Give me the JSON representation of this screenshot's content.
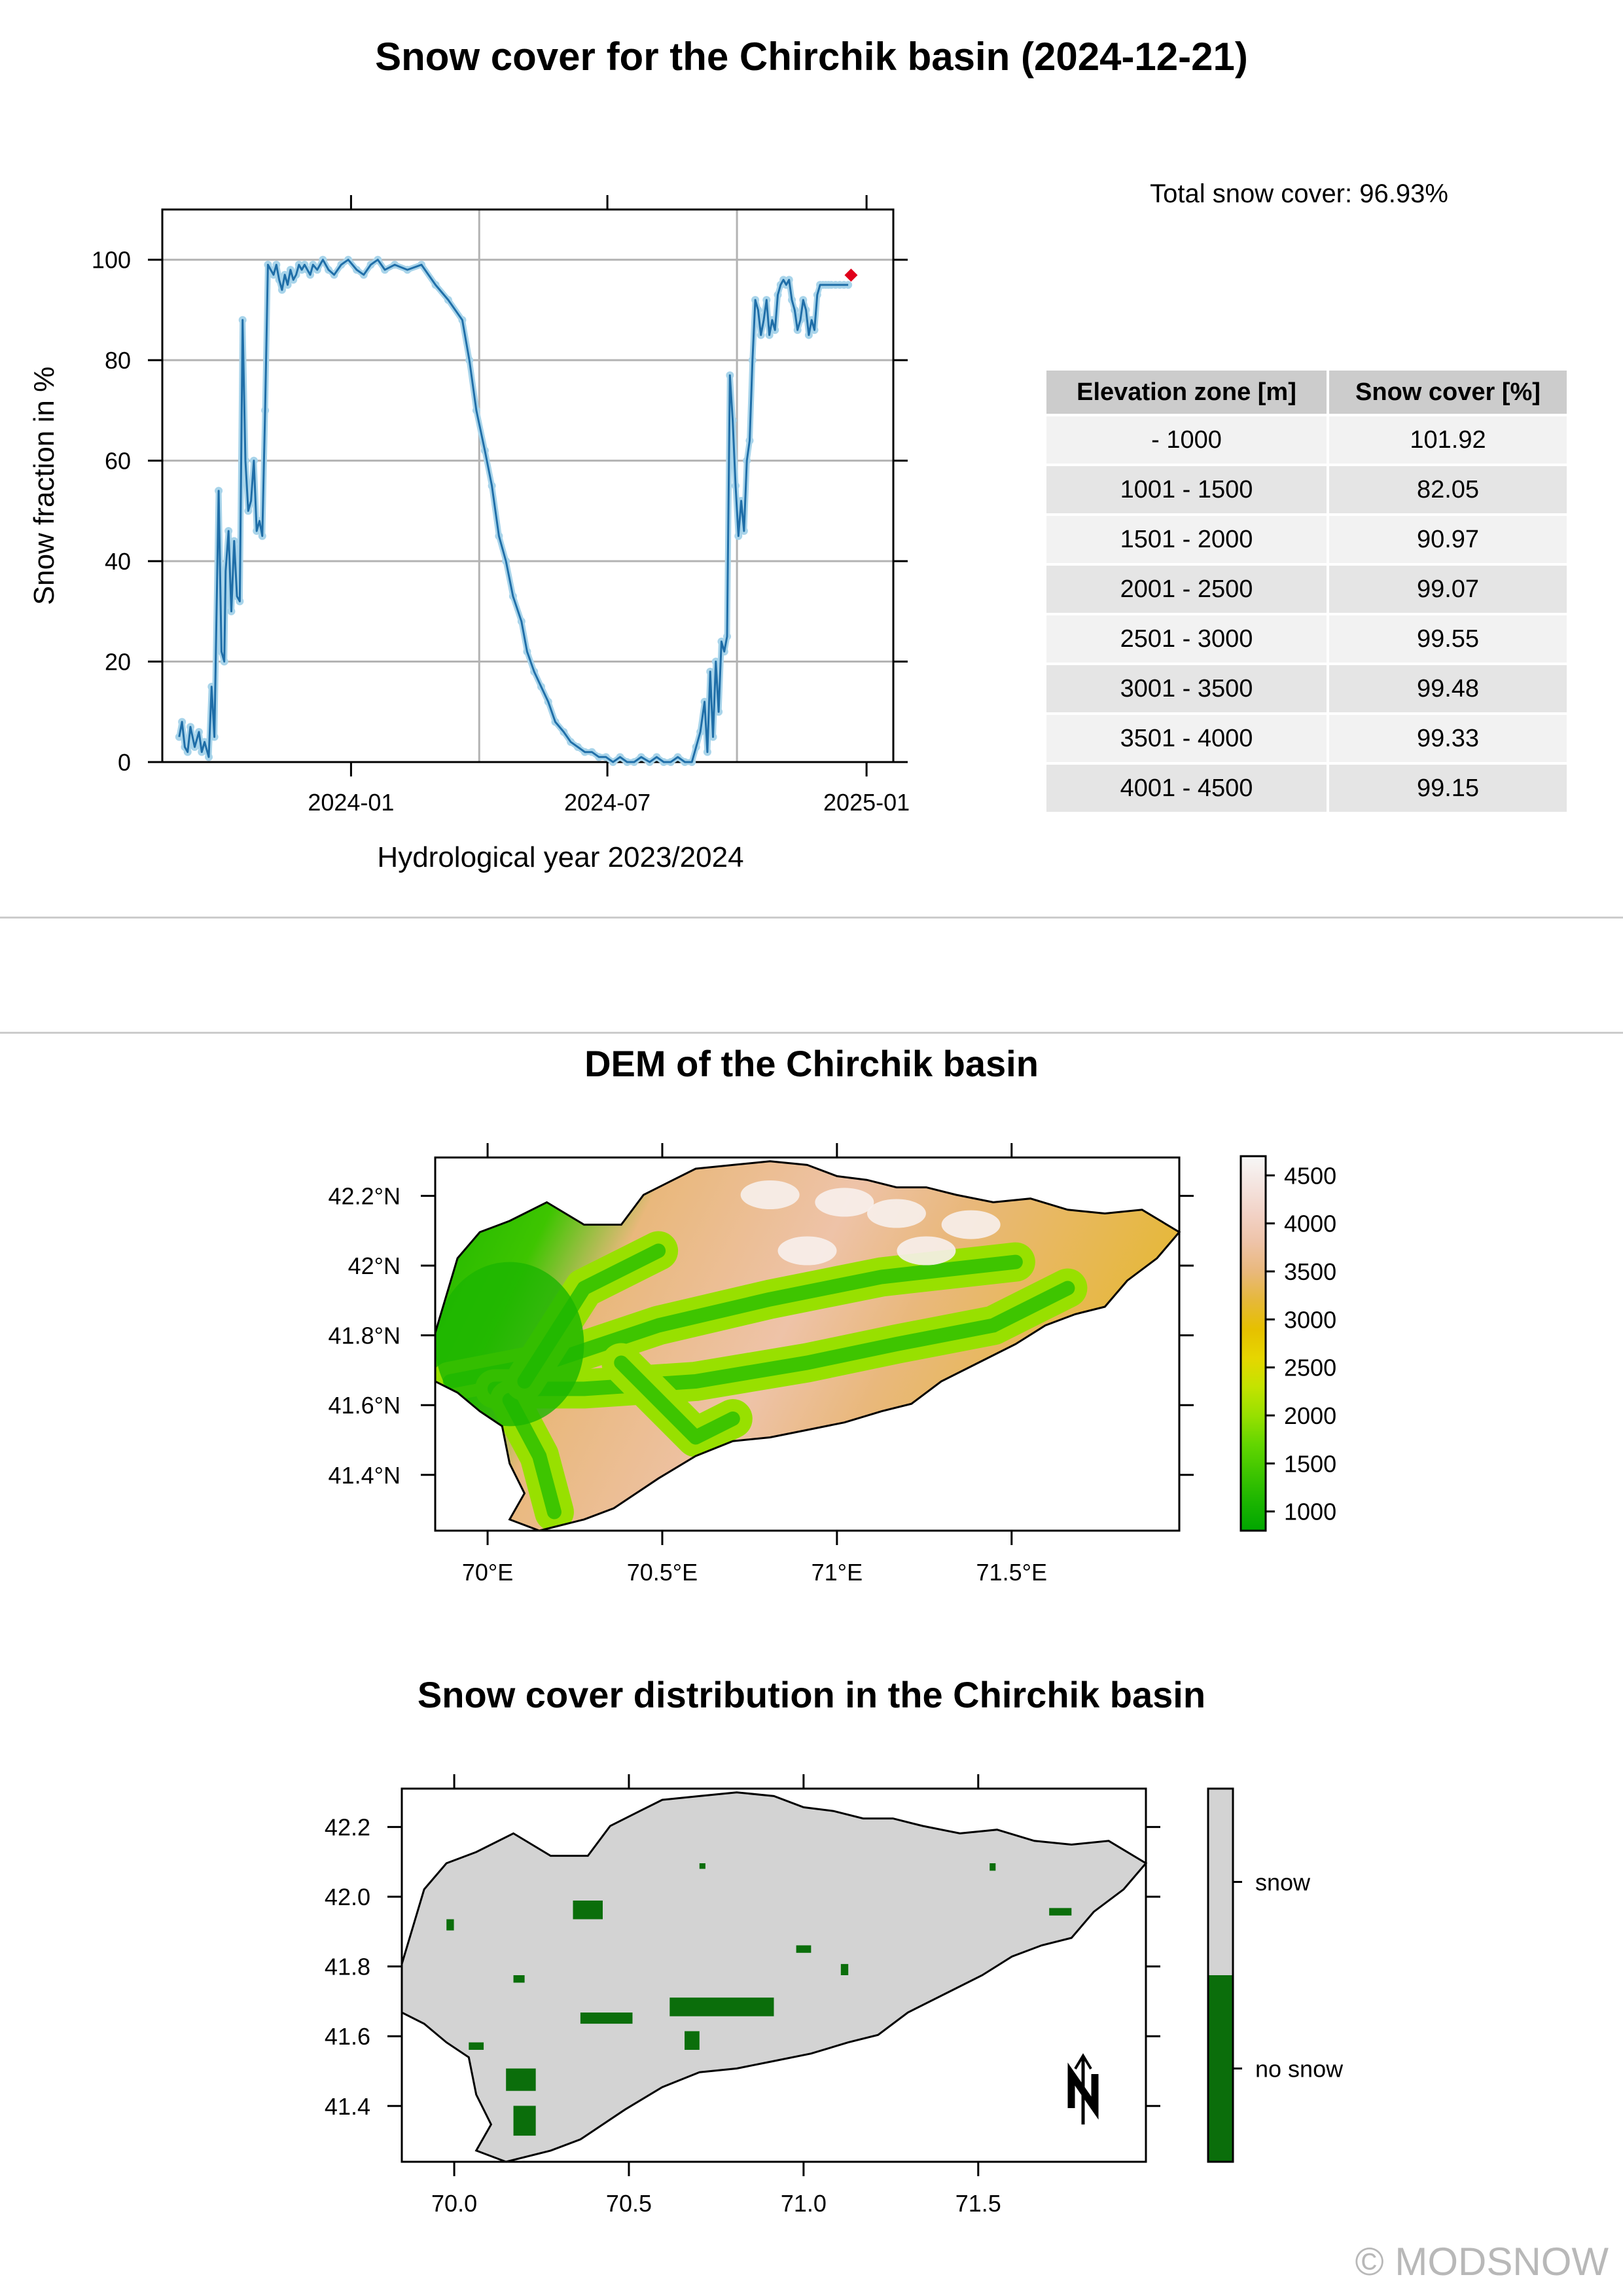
{
  "page": {
    "title": "Snow cover for the Chirchik basin (2024-12-21)",
    "total_snow_cover": "Total snow cover: 96.93%",
    "copyright": "© MODSNOW"
  },
  "colors": {
    "line": "#1f6ea8",
    "point": "#a8d4ea",
    "last_point": "#e0001a",
    "grid": "#b3b3b3",
    "snow": "#d3d3d3",
    "no_snow": "#0b6e0b",
    "table_header": "#cccccc",
    "table_row_light": "#f2f2f2",
    "table_row_dark": "#e5e5e5"
  },
  "chart_data": [
    {
      "type": "line",
      "xlabel": "Hydrological year 2023/2024",
      "ylabel": "Snow fraction in %",
      "xlim": [
        "2023-08-20",
        "2025-01-20"
      ],
      "ylim": [
        0,
        110
      ],
      "x_ticks": [
        "2024-01",
        "2024-07",
        "2025-01"
      ],
      "y_ticks": [
        0,
        20,
        40,
        60,
        80,
        100
      ],
      "grid": true,
      "series": [
        {
          "x": [
            "2023-09-01",
            "2023-09-03",
            "2023-09-05",
            "2023-09-07",
            "2023-09-09",
            "2023-09-12",
            "2023-09-15",
            "2023-09-17",
            "2023-09-19",
            "2023-09-22",
            "2023-09-24",
            "2023-09-26",
            "2023-09-29",
            "2023-10-01",
            "2023-10-03",
            "2023-10-04",
            "2023-10-06",
            "2023-10-08",
            "2023-10-10",
            "2023-10-12",
            "2023-10-14",
            "2023-10-16",
            "2023-10-18",
            "2023-10-20",
            "2023-10-22",
            "2023-10-24",
            "2023-10-26",
            "2023-10-28",
            "2023-10-30",
            "2023-11-01",
            "2023-11-03",
            "2023-11-05",
            "2023-11-07",
            "2023-11-09",
            "2023-11-11",
            "2023-11-13",
            "2023-11-15",
            "2023-11-17",
            "2023-11-19",
            "2023-11-21",
            "2023-11-23",
            "2023-11-25",
            "2023-11-27",
            "2023-11-29",
            "2023-12-01",
            "2023-12-03",
            "2023-12-05",
            "2023-12-08",
            "2023-12-12",
            "2023-12-16",
            "2023-12-20",
            "2023-12-25",
            "2023-12-30",
            "2024-01-05",
            "2024-01-10",
            "2024-01-15",
            "2024-01-20",
            "2024-01-25",
            "2024-02-01",
            "2024-02-10",
            "2024-02-20",
            "2024-03-01",
            "2024-03-10",
            "2024-03-20",
            "2024-03-25",
            "2024-03-30",
            "2024-04-05",
            "2024-04-10",
            "2024-04-15",
            "2024-04-20",
            "2024-04-25",
            "2024-05-01",
            "2024-05-05",
            "2024-05-10",
            "2024-05-15",
            "2024-05-20",
            "2024-05-25",
            "2024-05-31",
            "2024-06-05",
            "2024-06-10",
            "2024-06-15",
            "2024-06-20",
            "2024-06-25",
            "2024-06-30",
            "2024-07-05",
            "2024-07-10",
            "2024-07-15",
            "2024-07-20",
            "2024-07-25",
            "2024-07-31",
            "2024-08-05",
            "2024-08-10",
            "2024-08-15",
            "2024-08-20",
            "2024-08-25",
            "2024-08-30",
            "2024-09-02",
            "2024-09-05",
            "2024-09-08",
            "2024-09-10",
            "2024-09-12",
            "2024-09-14",
            "2024-09-16",
            "2024-09-18",
            "2024-09-20",
            "2024-09-22",
            "2024-09-24",
            "2024-09-26",
            "2024-09-28",
            "2024-09-30",
            "2024-10-02",
            "2024-10-04",
            "2024-10-06",
            "2024-10-08",
            "2024-10-10",
            "2024-10-12",
            "2024-10-14",
            "2024-10-16",
            "2024-10-18",
            "2024-10-20",
            "2024-10-22",
            "2024-10-24",
            "2024-10-26",
            "2024-10-28",
            "2024-10-30",
            "2024-11-01",
            "2024-11-03",
            "2024-11-05",
            "2024-11-07",
            "2024-11-09",
            "2024-11-11",
            "2024-11-13",
            "2024-11-15",
            "2024-11-17",
            "2024-11-19",
            "2024-11-21",
            "2024-11-23",
            "2024-11-25",
            "2024-11-27",
            "2024-11-29",
            "2024-12-01",
            "2024-12-03",
            "2024-12-05",
            "2024-12-07",
            "2024-12-10",
            "2024-12-13",
            "2024-12-16",
            "2024-12-19"
          ],
          "values": [
            5,
            8,
            3,
            2,
            7,
            3,
            6,
            2,
            4,
            1,
            15,
            5,
            54,
            22,
            20,
            38,
            46,
            30,
            44,
            33,
            32,
            88,
            60,
            50,
            52,
            60,
            46,
            48,
            45,
            70,
            99,
            98,
            97,
            99,
            96,
            94,
            97,
            95,
            98,
            96,
            97,
            99,
            98,
            99,
            98,
            97,
            99,
            98,
            100,
            98,
            97,
            99,
            100,
            98,
            97,
            99,
            100,
            98,
            99,
            98,
            99,
            95,
            92,
            88,
            80,
            70,
            62,
            55,
            45,
            40,
            33,
            28,
            22,
            18,
            15,
            12,
            8,
            6,
            4,
            3,
            2,
            2,
            1,
            1,
            0,
            1,
            0,
            0,
            1,
            0,
            1,
            0,
            0,
            1,
            0,
            0,
            3,
            6,
            12,
            2,
            18,
            5,
            20,
            10,
            24,
            22,
            25,
            77,
            68,
            55,
            45,
            52,
            46,
            60,
            64,
            80,
            92,
            90,
            85,
            88,
            92,
            85,
            88,
            86,
            93,
            95,
            96,
            95,
            96,
            92,
            90,
            86,
            88,
            92,
            90,
            85,
            88,
            86,
            93,
            95,
            95,
            95,
            95,
            95,
            95,
            95,
            95,
            95
          ],
          "last_point": {
            "x": "2024-12-21",
            "value": 96.93
          }
        }
      ]
    },
    {
      "type": "table",
      "columns": [
        "Elevation zone [m]",
        "Snow cover [%]"
      ],
      "rows": [
        [
          "- 1000",
          "101.92"
        ],
        [
          "1001 - 1500",
          "82.05"
        ],
        [
          "1501 - 2000",
          "90.97"
        ],
        [
          "2001 - 2500",
          "99.07"
        ],
        [
          "2501 - 3000",
          "99.55"
        ],
        [
          "3001 - 3500",
          "99.48"
        ],
        [
          "3501 - 4000",
          "99.33"
        ],
        [
          "4001 - 4500",
          "99.15"
        ]
      ]
    },
    {
      "type": "heatmap",
      "title": "DEM of the Chirchik basin",
      "x_ticks": [
        "70°E",
        "70.5°E",
        "71°E",
        "71.5°E"
      ],
      "y_ticks": [
        "42.2°N",
        "42°N",
        "41.8°N",
        "41.6°N",
        "41.4°N"
      ],
      "xlim": [
        69.85,
        71.98
      ],
      "ylim": [
        41.24,
        42.31
      ],
      "legend_ticks": [
        "4500",
        "4000",
        "3500",
        "3000",
        "2500",
        "2000",
        "1500",
        "1000"
      ],
      "legend_colors": [
        "#00a600",
        "#1bb500",
        "#3ec500",
        "#63d600",
        "#98e000",
        "#c4e300",
        "#e6d600",
        "#e6c000",
        "#e6b83a",
        "#e9b87c",
        "#eec3a8",
        "#f2d2c6",
        "#f4e4df",
        "#f7f7f7"
      ],
      "legend_range": [
        800,
        4700
      ]
    },
    {
      "type": "heatmap",
      "title": "Snow cover distribution in the Chirchik basin",
      "x_ticks": [
        "70.0",
        "70.5",
        "71.0",
        "71.5"
      ],
      "y_ticks": [
        "42.2",
        "42.0",
        "41.8",
        "41.6",
        "41.4"
      ],
      "xlim": [
        69.85,
        71.98
      ],
      "ylim": [
        41.24,
        42.31
      ],
      "legend": [
        "snow",
        "no snow"
      ]
    }
  ]
}
